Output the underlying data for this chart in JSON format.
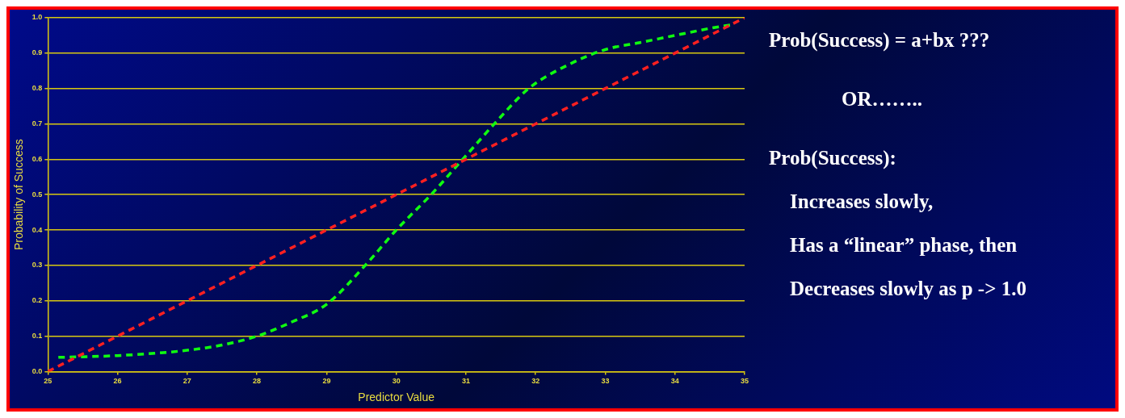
{
  "chart_data": {
    "type": "line",
    "xlabel": "Predictor Value",
    "ylabel": "Probability of Success",
    "xlim": [
      25,
      35
    ],
    "xticks": [
      25,
      26,
      27,
      28,
      29,
      30,
      31,
      32,
      33,
      34,
      35
    ],
    "ylim": [
      0,
      1
    ],
    "yticks": [
      {
        "value": 0,
        "label": "0.0"
      },
      {
        "value": 0.1,
        "label": "0.1"
      },
      {
        "value": 0.2,
        "label": "0.2"
      },
      {
        "value": 0.3,
        "label": "0.3"
      },
      {
        "value": 0.4,
        "label": "0.4"
      },
      {
        "value": 0.5,
        "label": "0.5"
      },
      {
        "value": 0.6,
        "label": "0.6"
      },
      {
        "value": 0.7,
        "label": "0.7"
      },
      {
        "value": 0.8,
        "label": "0.8"
      },
      {
        "value": 0.9,
        "label": "0.9"
      },
      {
        "value": 1,
        "label": "1.0"
      }
    ],
    "grid": "y",
    "line_style": "dashed",
    "marker": "none",
    "series": [
      {
        "color": "#ff2020",
        "x": [
          25,
          26,
          27,
          28,
          29,
          30,
          31,
          32,
          33,
          34,
          35
        ],
        "values": [
          0,
          0.1,
          0.2,
          0.3,
          0.4,
          0.5,
          0.6,
          0.7,
          0.8,
          0.9,
          1.0
        ]
      },
      {
        "color": "#10ff10",
        "x": [
          25.15,
          26,
          27,
          27.5,
          28,
          28.5,
          29,
          29.6,
          30,
          30.5,
          31,
          31.5,
          31.9,
          32.5,
          33,
          33.5,
          34,
          34.5,
          34.8
        ],
        "values": [
          0.04,
          0.045,
          0.06,
          0.075,
          0.1,
          0.14,
          0.19,
          0.31,
          0.4,
          0.5,
          0.61,
          0.72,
          0.8,
          0.87,
          0.91,
          0.93,
          0.95,
          0.97,
          0.98
        ]
      }
    ],
    "annotations": [
      "Prob(Success) = a+bx ???",
      "OR……..",
      "Prob(Success):",
      "Increases slowly,",
      "Has a “linear” phase, then",
      "Decreases slowly as p -> 1.0"
    ]
  }
}
